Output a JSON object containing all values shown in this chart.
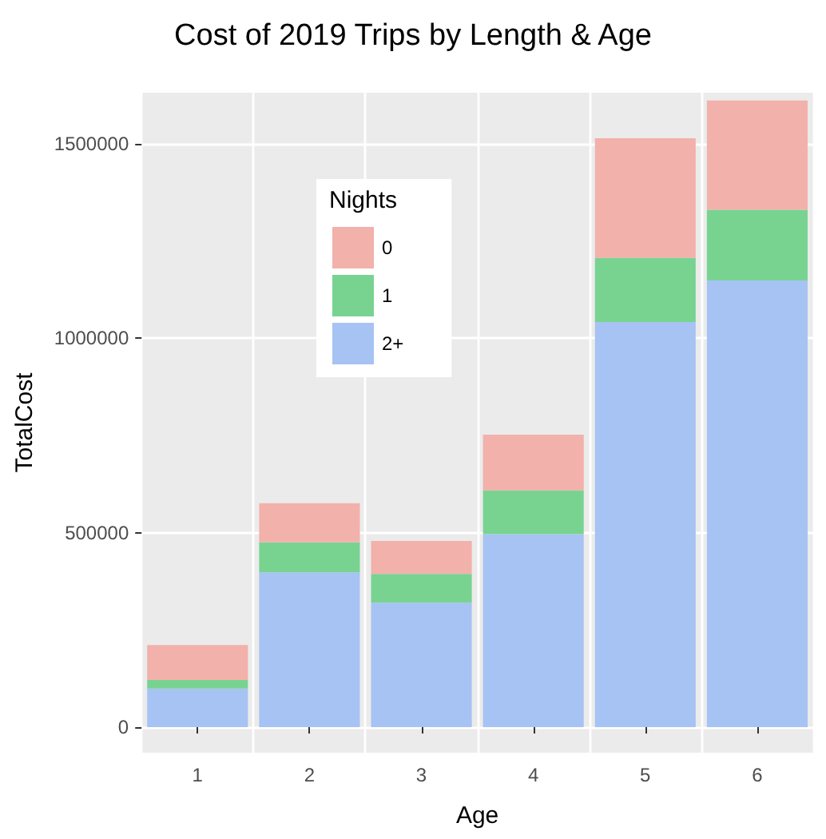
{
  "chart_data": {
    "type": "bar",
    "title": "Cost of 2019 Trips by Length & Age",
    "xlabel": "Age",
    "ylabel": "TotalCost",
    "legend_title": "Nights",
    "categories": [
      "1",
      "2",
      "3",
      "4",
      "5",
      "6"
    ],
    "stacked": true,
    "series": [
      {
        "name": "2+",
        "color": "#a6c3f3",
        "values": [
          99000,
          398000,
          320000,
          496000,
          1042000,
          1149000
        ]
      },
      {
        "name": "1",
        "color": "#78d391",
        "values": [
          22000,
          77000,
          74000,
          113000,
          165000,
          182000
        ]
      },
      {
        "name": "0",
        "color": "#f2b1ab",
        "values": [
          90000,
          101000,
          85000,
          143000,
          308000,
          281000
        ]
      }
    ],
    "ylim": [
      -66000,
      1632000
    ],
    "yticks": [
      0,
      500000,
      1000000,
      1500000
    ],
    "grid": true,
    "legend": "top left"
  }
}
